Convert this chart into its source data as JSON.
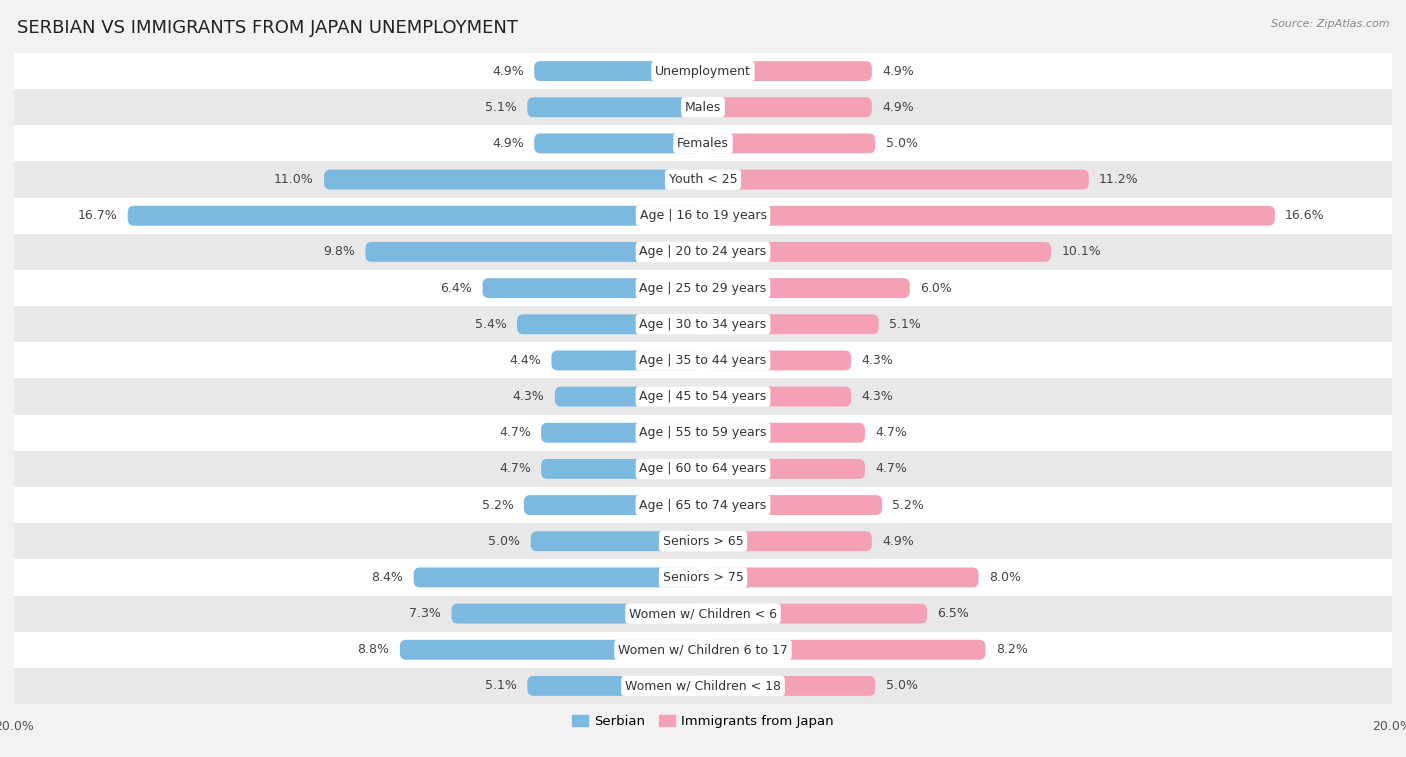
{
  "title": "SERBIAN VS IMMIGRANTS FROM JAPAN UNEMPLOYMENT",
  "source": "Source: ZipAtlas.com",
  "categories": [
    "Unemployment",
    "Males",
    "Females",
    "Youth < 25",
    "Age | 16 to 19 years",
    "Age | 20 to 24 years",
    "Age | 25 to 29 years",
    "Age | 30 to 34 years",
    "Age | 35 to 44 years",
    "Age | 45 to 54 years",
    "Age | 55 to 59 years",
    "Age | 60 to 64 years",
    "Age | 65 to 74 years",
    "Seniors > 65",
    "Seniors > 75",
    "Women w/ Children < 6",
    "Women w/ Children 6 to 17",
    "Women w/ Children < 18"
  ],
  "serbian": [
    4.9,
    5.1,
    4.9,
    11.0,
    16.7,
    9.8,
    6.4,
    5.4,
    4.4,
    4.3,
    4.7,
    4.7,
    5.2,
    5.0,
    8.4,
    7.3,
    8.8,
    5.1
  ],
  "immigrants": [
    4.9,
    4.9,
    5.0,
    11.2,
    16.6,
    10.1,
    6.0,
    5.1,
    4.3,
    4.3,
    4.7,
    4.7,
    5.2,
    4.9,
    8.0,
    6.5,
    8.2,
    5.0
  ],
  "serbian_color": "#7cb9e0",
  "immigrant_color": "#f4a0b5",
  "immigrant_color_dark": "#e8647a",
  "xlim": 20.0,
  "background_color": "#f2f2f2",
  "row_color_odd": "#ffffff",
  "row_color_even": "#e8e8e8",
  "title_fontsize": 13,
  "label_fontsize": 9,
  "value_fontsize": 9,
  "legend_serbian": "Serbian",
  "legend_immigrants": "Immigrants from Japan"
}
